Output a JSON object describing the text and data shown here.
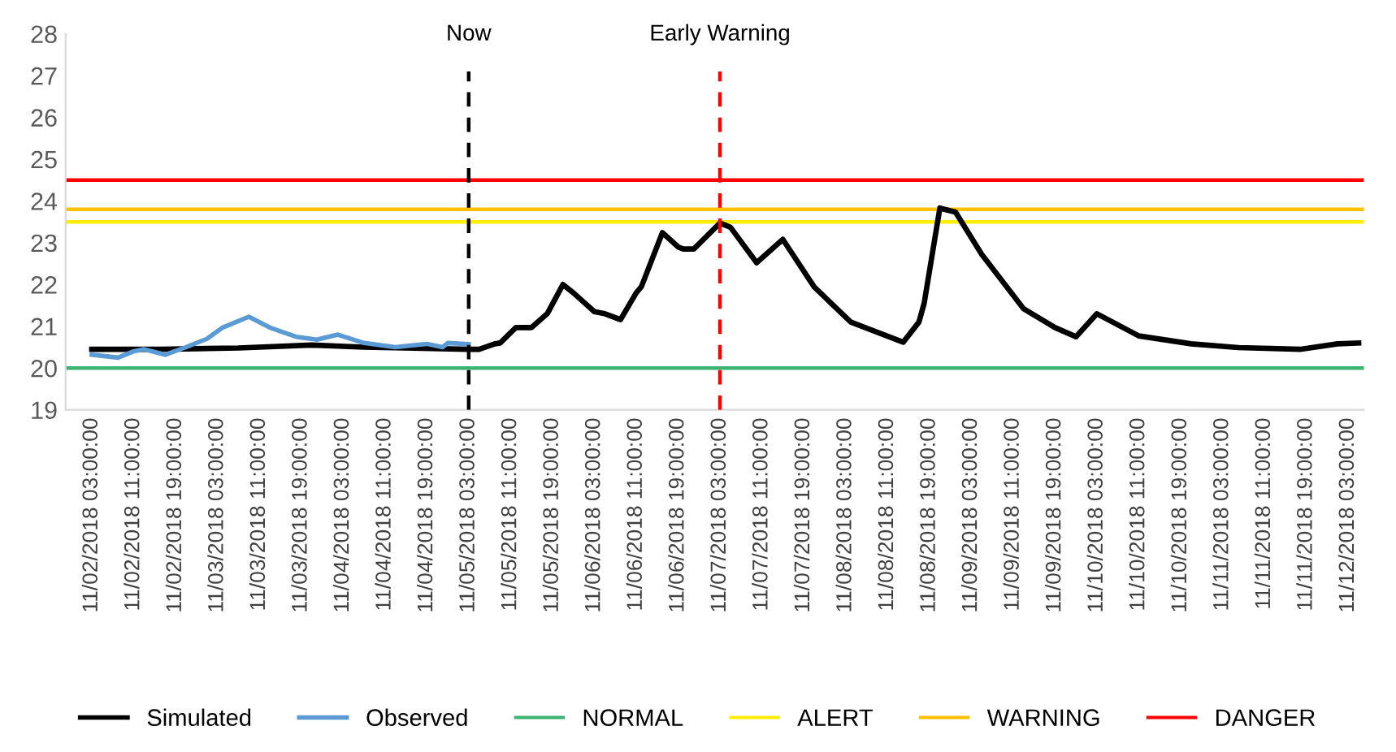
{
  "chart_data": {
    "type": "line",
    "xlim": [
      "2018-11-01T22:00",
      "2018-11-12T06:00"
    ],
    "xticks": [
      {
        "value": "2018-11-02T03:00",
        "label": "11/02/2018 03:00:00"
      },
      {
        "value": "2018-11-02T11:00",
        "label": "11/02/2018 11:00:00"
      },
      {
        "value": "2018-11-02T19:00",
        "label": "11/02/2018 19:00:00"
      },
      {
        "value": "2018-11-03T03:00",
        "label": "11/03/2018 03:00:00"
      },
      {
        "value": "2018-11-03T11:00",
        "label": "11/03/2018 11:00:00"
      },
      {
        "value": "2018-11-03T19:00",
        "label": "11/03/2018 19:00:00"
      },
      {
        "value": "2018-11-04T03:00",
        "label": "11/04/2018 03:00:00"
      },
      {
        "value": "2018-11-04T11:00",
        "label": "11/04/2018 11:00:00"
      },
      {
        "value": "2018-11-04T19:00",
        "label": "11/04/2018 19:00:00"
      },
      {
        "value": "2018-11-05T03:00",
        "label": "11/05/2018 03:00:00"
      },
      {
        "value": "2018-11-05T11:00",
        "label": "11/05/2018 11:00:00"
      },
      {
        "value": "2018-11-05T19:00",
        "label": "11/05/2018 19:00:00"
      },
      {
        "value": "2018-11-06T03:00",
        "label": "11/06/2018 03:00:00"
      },
      {
        "value": "2018-11-06T11:00",
        "label": "11/06/2018 11:00:00"
      },
      {
        "value": "2018-11-06T19:00",
        "label": "11/06/2018 19:00:00"
      },
      {
        "value": "2018-11-07T03:00",
        "label": "11/07/2018 03:00:00"
      },
      {
        "value": "2018-11-07T11:00",
        "label": "11/07/2018 11:00:00"
      },
      {
        "value": "2018-11-07T19:00",
        "label": "11/07/2018 19:00:00"
      },
      {
        "value": "2018-11-08T03:00",
        "label": "11/08/2018 03:00:00"
      },
      {
        "value": "2018-11-08T11:00",
        "label": "11/08/2018 11:00:00"
      },
      {
        "value": "2018-11-08T19:00",
        "label": "11/08/2018 19:00:00"
      },
      {
        "value": "2018-11-09T03:00",
        "label": "11/09/2018 03:00:00"
      },
      {
        "value": "2018-11-09T11:00",
        "label": "11/09/2018 11:00:00"
      },
      {
        "value": "2018-11-09T19:00",
        "label": "11/09/2018 19:00:00"
      },
      {
        "value": "2018-11-10T03:00",
        "label": "11/10/2018 03:00:00"
      },
      {
        "value": "2018-11-10T11:00",
        "label": "11/10/2018 11:00:00"
      },
      {
        "value": "2018-11-10T19:00",
        "label": "11/10/2018 19:00:00"
      },
      {
        "value": "2018-11-11T03:00",
        "label": "11/11/2018 03:00:00"
      },
      {
        "value": "2018-11-11T11:00",
        "label": "11/11/2018 11:00:00"
      },
      {
        "value": "2018-11-11T19:00",
        "label": "11/11/2018 19:00:00"
      },
      {
        "value": "2018-11-12T03:00",
        "label": "11/12/2018 03:00:00"
      }
    ],
    "ylim": [
      19,
      28
    ],
    "yticks": [
      19,
      20,
      21,
      22,
      23,
      24,
      25,
      26,
      27,
      28
    ],
    "grid": false,
    "legend": "bottom",
    "marker": "none",
    "line_style": "solid",
    "series": [
      {
        "name": "Simulated",
        "color": "#000000",
        "x": [
          "2018-11-02T03:00",
          "2018-11-02T16:00",
          "2018-11-03T07:00",
          "2018-11-03T21:00",
          "2018-11-04T07:00",
          "2018-11-05T03:00",
          "2018-11-05T05:00",
          "2018-11-05T08:00",
          "2018-11-05T09:00",
          "2018-11-05T12:00",
          "2018-11-05T15:00",
          "2018-11-05T18:00",
          "2018-11-05T21:00",
          "2018-11-05T23:00",
          "2018-11-06T03:00",
          "2018-11-06T05:00",
          "2018-11-06T08:00",
          "2018-11-06T11:00",
          "2018-11-06T12:00",
          "2018-11-06T16:00",
          "2018-11-06T19:00",
          "2018-11-06T20:00",
          "2018-11-06T22:00",
          "2018-11-07T03:00",
          "2018-11-07T05:00",
          "2018-11-07T10:00",
          "2018-11-07T15:00",
          "2018-11-07T21:00",
          "2018-11-08T04:00",
          "2018-11-08T14:00",
          "2018-11-08T17:00",
          "2018-11-08T18:00",
          "2018-11-08T21:00",
          "2018-11-09T00:00",
          "2018-11-09T05:00",
          "2018-11-09T13:00",
          "2018-11-09T19:00",
          "2018-11-09T23:00",
          "2018-11-10T03:00",
          "2018-11-10T11:00",
          "2018-11-10T21:00",
          "2018-11-11T06:00",
          "2018-11-11T18:00",
          "2018-11-12T01:00",
          "2018-11-12T05:00"
        ],
        "values": [
          20.45,
          20.45,
          20.48,
          20.55,
          20.5,
          20.45,
          20.45,
          20.58,
          20.6,
          20.97,
          20.97,
          21.3,
          22.0,
          21.8,
          21.35,
          21.3,
          21.16,
          21.8,
          21.95,
          23.24,
          22.9,
          22.85,
          22.85,
          23.47,
          23.37,
          22.52,
          23.08,
          21.94,
          21.1,
          20.62,
          21.1,
          21.55,
          23.83,
          23.73,
          22.72,
          21.42,
          20.97,
          20.75,
          21.3,
          20.77,
          20.58,
          20.49,
          20.45,
          20.58,
          20.6
        ]
      },
      {
        "name": "Observed",
        "color": "#5b9bd5",
        "x": [
          "2018-11-02T03:00",
          "2018-11-02T08:00",
          "2018-11-02T11:00",
          "2018-11-02T13:00",
          "2018-11-02T17:00",
          "2018-11-02T21:00",
          "2018-11-03T00:00",
          "2018-11-03T01:00",
          "2018-11-03T04:00",
          "2018-11-03T09:00",
          "2018-11-03T13:00",
          "2018-11-03T18:00",
          "2018-11-03T22:00",
          "2018-11-04T02:00",
          "2018-11-04T07:00",
          "2018-11-04T13:00",
          "2018-11-04T19:00",
          "2018-11-04T22:00",
          "2018-11-04T23:00",
          "2018-11-05T03:00"
        ],
        "values": [
          20.32,
          20.25,
          20.4,
          20.45,
          20.32,
          20.5,
          20.65,
          20.7,
          20.97,
          21.23,
          20.97,
          20.75,
          20.68,
          20.8,
          20.6,
          20.5,
          20.58,
          20.5,
          20.6,
          20.57
        ]
      }
    ],
    "ref_lines": [
      {
        "axis": "y",
        "value": 20,
        "label": "NORMAL",
        "color": "#3cb371",
        "line_style": "solid"
      },
      {
        "axis": "y",
        "value": 23.5,
        "label": "ALERT",
        "color": "#ffee00",
        "line_style": "solid"
      },
      {
        "axis": "y",
        "value": 23.8,
        "label": "WARNING",
        "color": "#ffc000",
        "line_style": "solid"
      },
      {
        "axis": "y",
        "value": 24.5,
        "label": "DANGER",
        "color": "#ff0000",
        "line_style": "solid"
      },
      {
        "axis": "x",
        "value": "2018-11-05T03:00",
        "label": "Now",
        "color": "#000000",
        "line_style": "dashed"
      },
      {
        "axis": "x",
        "value": "2018-11-07T03:00",
        "label": "Early Warning",
        "color": "#ff0000",
        "line_style": "dashed"
      }
    ]
  }
}
